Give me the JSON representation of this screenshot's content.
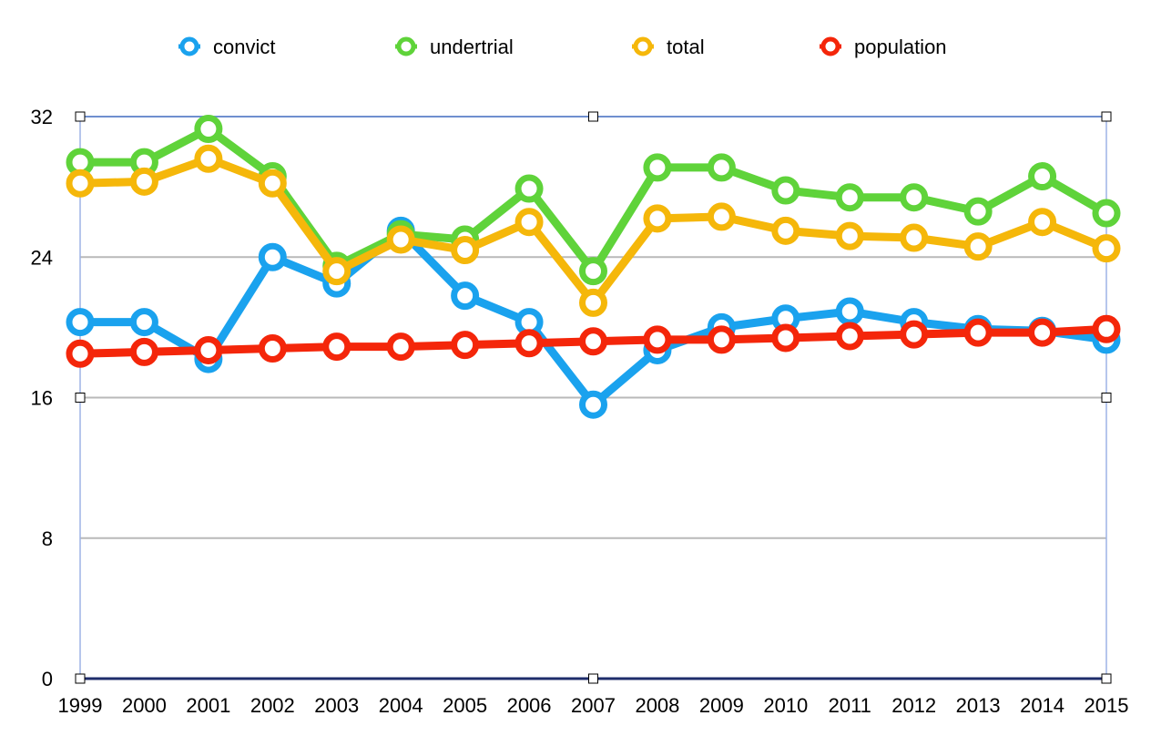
{
  "chart_data": {
    "type": "line",
    "x": [
      "1999",
      "2000",
      "2001",
      "2002",
      "2003",
      "2004",
      "2005",
      "2006",
      "2007",
      "2008",
      "2009",
      "2010",
      "2011",
      "2012",
      "2013",
      "2014",
      "2015"
    ],
    "series": [
      {
        "name": "convict",
        "color": "#1aa2ee",
        "values": [
          20.3,
          20.3,
          18.2,
          24.0,
          22.5,
          25.5,
          21.8,
          20.3,
          15.6,
          18.7,
          20.0,
          20.5,
          20.9,
          20.3,
          19.9,
          19.8,
          19.3
        ]
      },
      {
        "name": "undertrial",
        "color": "#5fd33a",
        "values": [
          29.4,
          29.4,
          31.3,
          28.6,
          23.5,
          25.3,
          25.0,
          27.9,
          23.2,
          29.1,
          29.1,
          27.8,
          27.4,
          27.4,
          26.6,
          28.6,
          26.5
        ]
      },
      {
        "name": "total",
        "color": "#f5b70a",
        "values": [
          28.2,
          28.3,
          29.6,
          28.2,
          23.2,
          25.0,
          24.4,
          26.0,
          21.4,
          26.2,
          26.3,
          25.5,
          25.2,
          25.1,
          24.6,
          26.0,
          24.5
        ]
      },
      {
        "name": "population",
        "color": "#f4260a",
        "values": [
          18.5,
          18.6,
          18.7,
          18.8,
          18.9,
          18.9,
          19.0,
          19.1,
          19.2,
          19.3,
          19.3,
          19.4,
          19.5,
          19.6,
          19.7,
          19.7,
          19.9
        ]
      }
    ],
    "y_ticks": [
      "0",
      "8",
      "16",
      "24",
      "32"
    ],
    "ylim": [
      0,
      32
    ],
    "grid": true,
    "legend_position": "top"
  }
}
